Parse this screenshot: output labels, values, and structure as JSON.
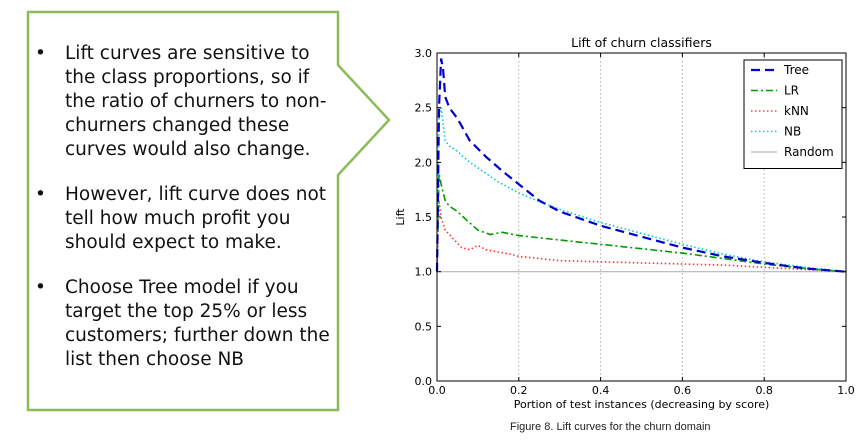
{
  "slide": {
    "bullets": [
      {
        "marker": "•",
        "text": "Lift curves are sensitive to the class proportions, so if the ratio of churners to non-churners changed these curves would also change."
      },
      {
        "marker": "•",
        "text": "However, lift curve does not tell how much profit you should expect to make."
      },
      {
        "marker": "•",
        "text": "Choose Tree model if you target the top 25% or less customers; further down the list then choose NB"
      }
    ],
    "caption": "Figure 8. Lift curves for the churn domain",
    "callout_border_color": "#8dbb5a"
  },
  "chart_data": {
    "type": "line",
    "title": "Lift of churn classifiers",
    "xlabel": "Portion of test instances (decreasing by score)",
    "ylabel": "Lift",
    "xlim": [
      0,
      1
    ],
    "ylim": [
      0,
      3
    ],
    "xticks": [
      0.0,
      0.2,
      0.4,
      0.6,
      0.8,
      1.0
    ],
    "xtick_labels": [
      "0.0",
      "0.2",
      "0.4",
      "0.6",
      "0.8",
      "1.0"
    ],
    "yticks": [
      0.0,
      0.5,
      1.0,
      1.5,
      2.0,
      2.5,
      3.0
    ],
    "ytick_labels": [
      "0.0",
      "0.5",
      "1.0",
      "1.5",
      "2.0",
      "2.5",
      "3.0"
    ],
    "grid": "vertical dotted",
    "legend_position": "top-right",
    "series": [
      {
        "name": "Tree",
        "color": "#0000cc",
        "style": "dashed",
        "x": [
          0.0,
          0.005,
          0.01,
          0.015,
          0.02,
          0.03,
          0.05,
          0.08,
          0.12,
          0.16,
          0.2,
          0.25,
          0.3,
          0.4,
          0.5,
          0.6,
          0.7,
          0.8,
          0.9,
          1.0
        ],
        "y": [
          1.0,
          2.5,
          2.95,
          2.85,
          2.6,
          2.5,
          2.4,
          2.2,
          2.05,
          1.92,
          1.8,
          1.65,
          1.55,
          1.42,
          1.32,
          1.22,
          1.14,
          1.08,
          1.03,
          1.0
        ]
      },
      {
        "name": "LR",
        "color": "#009900",
        "style": "dashdot",
        "x": [
          0.0,
          0.005,
          0.01,
          0.02,
          0.03,
          0.05,
          0.07,
          0.1,
          0.13,
          0.16,
          0.2,
          0.25,
          0.3,
          0.4,
          0.5,
          0.6,
          0.7,
          0.8,
          0.9,
          1.0
        ],
        "y": [
          1.0,
          1.9,
          1.8,
          1.65,
          1.6,
          1.55,
          1.48,
          1.38,
          1.34,
          1.36,
          1.33,
          1.31,
          1.29,
          1.25,
          1.21,
          1.17,
          1.12,
          1.07,
          1.03,
          1.0
        ]
      },
      {
        "name": "kNN",
        "color": "#ff3333",
        "style": "dotted",
        "x": [
          0.0,
          0.005,
          0.01,
          0.02,
          0.04,
          0.06,
          0.08,
          0.1,
          0.12,
          0.15,
          0.18,
          0.2,
          0.25,
          0.3,
          0.4,
          0.5,
          0.6,
          0.7,
          0.8,
          0.9,
          1.0
        ],
        "y": [
          1.0,
          1.65,
          1.5,
          1.38,
          1.3,
          1.22,
          1.2,
          1.24,
          1.2,
          1.18,
          1.16,
          1.14,
          1.12,
          1.1,
          1.09,
          1.08,
          1.07,
          1.06,
          1.04,
          1.02,
          1.0
        ]
      },
      {
        "name": "NB",
        "color": "#00cccc",
        "style": "dotted",
        "x": [
          0.0,
          0.005,
          0.01,
          0.02,
          0.03,
          0.05,
          0.08,
          0.1,
          0.15,
          0.2,
          0.25,
          0.3,
          0.4,
          0.5,
          0.6,
          0.7,
          0.8,
          0.9,
          1.0
        ],
        "y": [
          1.0,
          2.4,
          2.5,
          2.2,
          2.15,
          2.1,
          2.0,
          1.95,
          1.82,
          1.72,
          1.64,
          1.57,
          1.45,
          1.35,
          1.25,
          1.16,
          1.09,
          1.04,
          1.0
        ]
      },
      {
        "name": "Random",
        "color": "#aaaaaa",
        "style": "solid",
        "x": [
          0.0,
          1.0
        ],
        "y": [
          1.0,
          1.0
        ]
      }
    ]
  }
}
